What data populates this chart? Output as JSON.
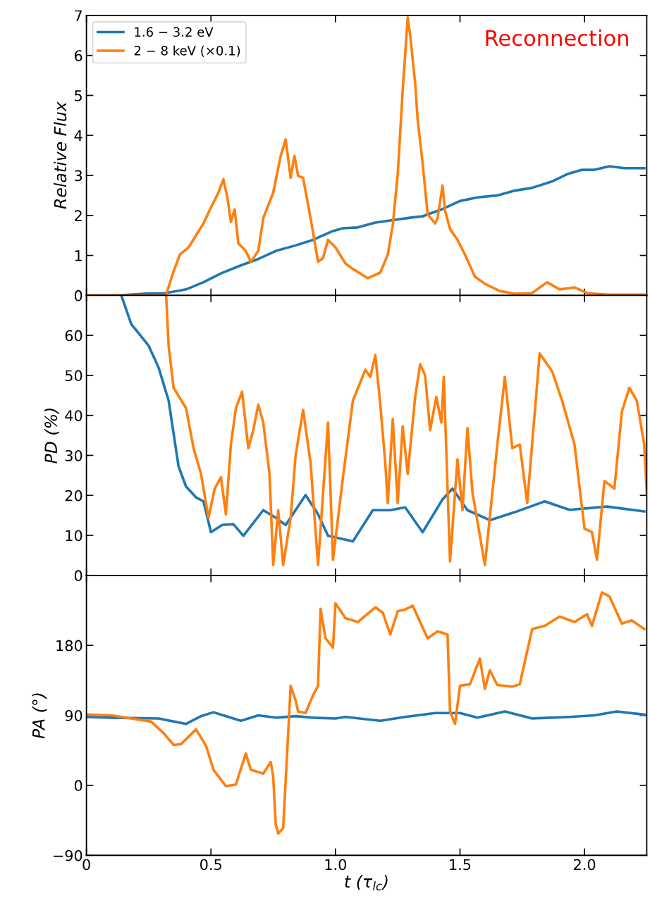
{
  "chart_data": [
    {
      "type": "line",
      "ylabel": "Relative Flux",
      "annotations": [
        "Reconnection"
      ],
      "legend": "top left",
      "grid": false,
      "tick_labels": "y",
      "xlim": [
        0,
        2.25
      ],
      "xticks": [
        0,
        0.5,
        1,
        1.5,
        2
      ],
      "ylim": [
        0,
        7
      ],
      "yticks": [
        0,
        1,
        2,
        3,
        4,
        5,
        6,
        7
      ],
      "series": [
        {
          "name": "1.6 − 3.2 eV",
          "color": "#1f77b4",
          "x": [
            0,
            0.13,
            0.25,
            0.31,
            0.4,
            0.47,
            0.54,
            0.62,
            0.69,
            0.76,
            0.84,
            0.91,
            0.99,
            1.03,
            1.09,
            1.16,
            1.24,
            1.31,
            1.35,
            1.43,
            1.5,
            1.57,
            1.65,
            1.72,
            1.79,
            1.87,
            1.93,
            1.99,
            2.04,
            2.1,
            2.16,
            2.24
          ],
          "values": [
            0,
            0,
            0.05,
            0.05,
            0.15,
            0.33,
            0.55,
            0.75,
            0.91,
            1.11,
            1.25,
            1.39,
            1.61,
            1.68,
            1.7,
            1.82,
            1.89,
            1.95,
            1.98,
            2.16,
            2.36,
            2.45,
            2.5,
            2.62,
            2.69,
            2.85,
            3.03,
            3.14,
            3.14,
            3.23,
            3.18,
            3.18
          ]
        },
        {
          "name": "2 − 8 keV (×0.1)",
          "color": "#ff7f0e",
          "x": [
            0,
            0.31,
            0.32,
            0.35,
            0.375,
            0.41,
            0.44,
            0.47,
            0.5,
            0.53,
            0.55,
            0.565,
            0.58,
            0.595,
            0.61,
            0.64,
            0.66,
            0.69,
            0.71,
            0.75,
            0.78,
            0.8,
            0.82,
            0.835,
            0.85,
            0.87,
            0.9,
            0.93,
            0.95,
            0.97,
            1.0,
            1.04,
            1.07,
            1.13,
            1.18,
            1.21,
            1.23,
            1.25,
            1.27,
            1.29,
            1.3,
            1.32,
            1.33,
            1.35,
            1.37,
            1.4,
            1.41,
            1.43,
            1.44,
            1.46,
            1.49,
            1.52,
            1.56,
            1.6,
            1.66,
            1.72,
            1.79,
            1.85,
            1.9,
            1.96,
            2.01,
            2.09,
            2.24
          ],
          "values": [
            0,
            0,
            0.02,
            0.6,
            1.02,
            1.2,
            1.5,
            1.8,
            2.2,
            2.57,
            2.9,
            2.48,
            1.84,
            2.15,
            1.3,
            1.11,
            0.84,
            1.11,
            1.93,
            2.57,
            3.49,
            3.9,
            2.94,
            3.49,
            2.99,
            2.94,
            1.93,
            0.84,
            0.93,
            1.39,
            1.2,
            0.8,
            0.66,
            0.43,
            0.57,
            1.02,
            1.75,
            3.03,
            5.13,
            6.95,
            6.5,
            5.31,
            4.4,
            3.3,
            2.03,
            1.8,
            1.93,
            2.75,
            2.12,
            1.66,
            1.39,
            1.02,
            0.47,
            0.29,
            0.11,
            0.04,
            0.06,
            0.33,
            0.15,
            0.2,
            0.06,
            0.02,
            0.02
          ]
        }
      ]
    },
    {
      "type": "line",
      "ylabel": "PD (%)",
      "grid": false,
      "tick_labels": "y",
      "xlim": [
        0,
        2.25
      ],
      "xticks": [
        0,
        0.5,
        1,
        1.5,
        2
      ],
      "ylim": [
        0,
        70
      ],
      "yticks": [
        0,
        10,
        20,
        30,
        40,
        50,
        60
      ],
      "series": [
        {
          "color": "#1f77b4",
          "x": [
            0.14,
            0.18,
            0.25,
            0.29,
            0.33,
            0.37,
            0.4,
            0.44,
            0.47,
            0.5,
            0.545,
            0.59,
            0.63,
            0.71,
            0.76,
            0.8,
            0.88,
            0.93,
            0.97,
            1.07,
            1.15,
            1.22,
            1.28,
            1.35,
            1.43,
            1.47,
            1.53,
            1.62,
            1.72,
            1.84,
            1.94,
            2.09,
            2.24
          ],
          "values": [
            70,
            62.8,
            57.4,
            51.9,
            43.7,
            27.2,
            22.2,
            19.5,
            18.5,
            10.8,
            12.6,
            12.8,
            9.9,
            16.3,
            14.4,
            12.6,
            20.1,
            15.3,
            9.9,
            8.5,
            16.3,
            16.3,
            17.0,
            10.8,
            19.0,
            21.7,
            16.3,
            13.8,
            15.8,
            18.5,
            16.4,
            17.2,
            16.0
          ]
        },
        {
          "color": "#ff7f0e",
          "x": [
            0.32,
            0.33,
            0.35,
            0.4,
            0.43,
            0.46,
            0.49,
            0.515,
            0.54,
            0.56,
            0.58,
            0.6,
            0.625,
            0.65,
            0.67,
            0.69,
            0.71,
            0.735,
            0.75,
            0.77,
            0.79,
            0.82,
            0.84,
            0.87,
            0.9,
            0.93,
            0.97,
            0.99,
            1.03,
            1.07,
            1.12,
            1.14,
            1.16,
            1.18,
            1.2,
            1.21,
            1.23,
            1.25,
            1.27,
            1.29,
            1.32,
            1.34,
            1.36,
            1.38,
            1.405,
            1.425,
            1.435,
            1.46,
            1.49,
            1.51,
            1.53,
            1.55,
            1.6,
            1.65,
            1.68,
            1.71,
            1.74,
            1.77,
            1.82,
            1.87,
            1.91,
            1.96,
            2.0,
            2.03,
            2.05,
            2.08,
            2.12,
            2.15,
            2.18,
            2.21,
            2.24,
            2.25
          ],
          "values": [
            70,
            57.4,
            46.9,
            41.8,
            31.8,
            25.4,
            14.4,
            21.7,
            24.5,
            15.3,
            32.7,
            41.8,
            45.9,
            31.8,
            36.3,
            42.7,
            38.2,
            25.4,
            2.6,
            16.3,
            2.6,
            14.4,
            30,
            41.4,
            28.1,
            2.6,
            38.2,
            3.9,
            24.5,
            43.7,
            51.4,
            49.6,
            55.1,
            42.7,
            28.1,
            18.1,
            39.1,
            18.1,
            37.3,
            25.4,
            44.6,
            52.8,
            50,
            36.3,
            44.6,
            38.2,
            49.6,
            3.5,
            29,
            16.3,
            36.8,
            20.8,
            2.6,
            32.7,
            49.6,
            31.8,
            32.7,
            18.1,
            55.5,
            51,
            43.7,
            32.7,
            11.7,
            10.8,
            3.9,
            23.6,
            21.7,
            40.9,
            46.9,
            43.7,
            32.7,
            20.8
          ]
        }
      ]
    },
    {
      "type": "line",
      "ylabel": "PA (°)",
      "xlabel": "t (τ$_{lc}$)",
      "grid": false,
      "xlim": [
        0,
        2.25
      ],
      "xticks": [
        0,
        0.5,
        {
          "value": 1,
          "label": "1.0"
        },
        1.5,
        {
          "value": 2,
          "label": "2.0"
        }
      ],
      "ylim": [
        -90,
        270
      ],
      "yticks": [
        {
          "value": -90,
          "label": "−90"
        },
        0,
        90,
        180
      ],
      "series": [
        {
          "color": "#1f77b4",
          "x": [
            0,
            0.1,
            0.29,
            0.4,
            0.46,
            0.51,
            0.62,
            0.69,
            0.76,
            0.84,
            0.91,
            1.0,
            1.04,
            1.18,
            1.28,
            1.4,
            1.5,
            1.57,
            1.68,
            1.79,
            1.94,
            2.04,
            2.13,
            2.24
          ],
          "values": [
            88,
            87,
            86,
            79,
            89,
            94,
            83,
            90,
            87,
            89,
            87,
            86,
            88,
            83,
            88,
            93,
            93,
            87,
            95,
            86,
            88,
            90,
            95,
            91
          ]
        },
        {
          "color": "#ff7f0e",
          "x": [
            0,
            0.1,
            0.18,
            0.26,
            0.31,
            0.35,
            0.38,
            0.44,
            0.48,
            0.51,
            0.56,
            0.6,
            0.64,
            0.66,
            0.71,
            0.74,
            0.75,
            0.76,
            0.77,
            0.79,
            0.8,
            0.82,
            0.84,
            0.85,
            0.88,
            0.91,
            0.93,
            0.94,
            0.96,
            0.99,
            1.0,
            1.04,
            1.09,
            1.16,
            1.19,
            1.22,
            1.25,
            1.28,
            1.31,
            1.37,
            1.41,
            1.45,
            1.46,
            1.48,
            1.5,
            1.54,
            1.58,
            1.6,
            1.62,
            1.65,
            1.71,
            1.74,
            1.79,
            1.84,
            1.9,
            1.96,
            2.01,
            2.03,
            2.07,
            2.1,
            2.15,
            2.19,
            2.24
          ],
          "values": [
            91,
            90,
            86,
            82,
            67,
            52,
            53,
            72,
            51,
            20,
            -1,
            1,
            41,
            20,
            15,
            30,
            11,
            -50,
            -62,
            -55,
            6,
            128,
            109,
            95,
            93,
            116,
            128,
            227,
            189,
            177,
            234,
            215,
            210,
            229,
            222,
            194,
            224,
            226,
            231,
            189,
            198,
            194,
            95,
            79,
            128,
            130,
            163,
            124,
            148,
            129,
            127,
            130,
            201,
            205,
            217,
            210,
            220,
            205,
            248,
            243,
            208,
            212,
            201
          ]
        }
      ]
    }
  ]
}
